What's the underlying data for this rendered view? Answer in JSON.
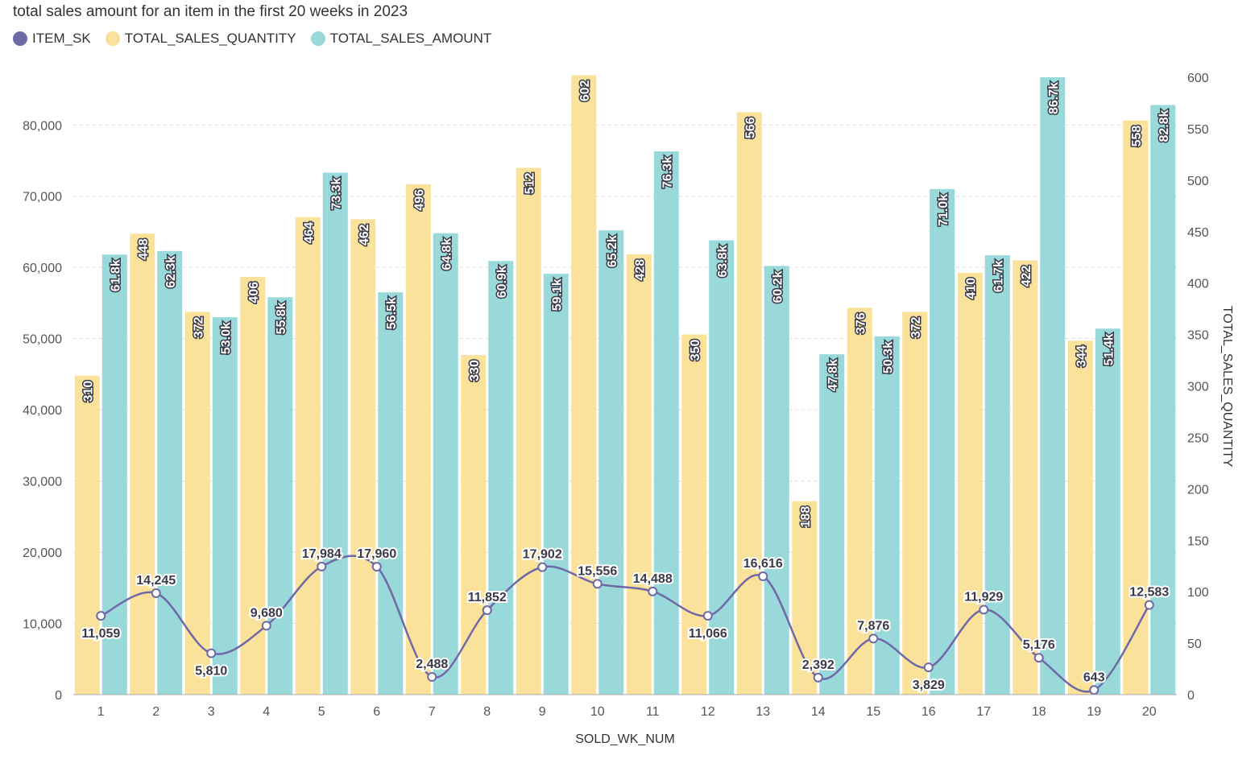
{
  "chart_data": {
    "type": "bar",
    "title": "total sales amount for an item in the first 20 weeks in 2023",
    "xlabel": "SOLD_WK_NUM",
    "ylabel": "",
    "y2label": "TOTAL_SALES_QUANTITY",
    "categories": [
      "1",
      "2",
      "3",
      "4",
      "5",
      "6",
      "7",
      "8",
      "9",
      "10",
      "11",
      "12",
      "13",
      "14",
      "15",
      "16",
      "17",
      "18",
      "19",
      "20"
    ],
    "ylim": [
      0,
      86700
    ],
    "y2lim": [
      0,
      600
    ],
    "yticks": [
      0,
      10000,
      20000,
      30000,
      40000,
      50000,
      60000,
      70000,
      80000
    ],
    "ytick_labels": [
      "0",
      "10,000",
      "20,000",
      "30,000",
      "40,000",
      "50,000",
      "60,000",
      "70,000",
      "80,000"
    ],
    "y2ticks": [
      0,
      50,
      100,
      150,
      200,
      250,
      300,
      350,
      400,
      450,
      500,
      550,
      600
    ],
    "grid": true,
    "legend_position": "top-left",
    "series": [
      {
        "name": "ITEM_SK",
        "kind": "line",
        "axis": "left",
        "color": "#6f68a8",
        "values": [
          11059,
          14245,
          5810,
          9680,
          17984,
          17960,
          2488,
          11852,
          17902,
          15556,
          14488,
          11066,
          16616,
          2392,
          7876,
          3829,
          11929,
          5176,
          643,
          12583
        ],
        "labels": [
          "11,059",
          "14,245",
          "5,810",
          "9,680",
          "17,984",
          "17,960",
          "2,488",
          "11,852",
          "17,902",
          "15,556",
          "14,488",
          "11,066",
          "16,616",
          "2,392",
          "7,876",
          "3,829",
          "11,929",
          "5,176",
          "643",
          "12,583"
        ]
      },
      {
        "name": "TOTAL_SALES_QUANTITY",
        "kind": "bar",
        "axis": "right",
        "color": "#fae29b",
        "values": [
          310,
          448,
          372,
          406,
          464,
          462,
          496,
          330,
          512,
          602,
          428,
          350,
          566,
          188,
          376,
          372,
          410,
          422,
          344,
          558
        ],
        "labels": [
          "310",
          "448",
          "372",
          "406",
          "464",
          "462",
          "496",
          "330",
          "512",
          "602",
          "428",
          "350",
          "566",
          "188",
          "376",
          "372",
          "410",
          "422",
          "344",
          "558"
        ]
      },
      {
        "name": "TOTAL_SALES_AMOUNT",
        "kind": "bar",
        "axis": "left",
        "color": "#99d9d9",
        "values": [
          61800,
          62300,
          53000,
          55800,
          73300,
          56500,
          64800,
          60900,
          59100,
          65200,
          76300,
          63800,
          60200,
          47800,
          50300,
          71000,
          61700,
          86700,
          51400,
          82800
        ],
        "labels": [
          "61.8k",
          "62.3k",
          "53.0k",
          "55.8k",
          "73.3k",
          "56.5k",
          "64.8k",
          "60.9k",
          "59.1k",
          "65.2k",
          "76.3k",
          "63.8k",
          "60.2k",
          "47.8k",
          "50.3k",
          "71.0k",
          "61.7k",
          "86.7k",
          "51.4k",
          "82.8k"
        ]
      }
    ]
  }
}
